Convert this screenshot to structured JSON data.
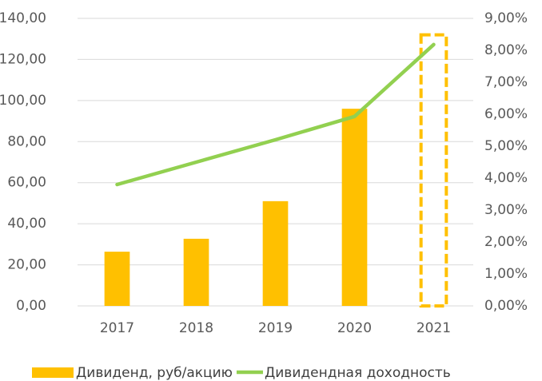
{
  "chart_data": {
    "type": "bar_line",
    "categories": [
      "2017",
      "2018",
      "2019",
      "2020",
      "2021"
    ],
    "series": [
      {
        "name": "Дивиденд, руб/акцию",
        "type": "bar",
        "color": "#ffc000",
        "values": [
          26.4,
          32.7,
          51,
          96,
          132
        ],
        "dashed": [
          false,
          false,
          false,
          false,
          true
        ]
      },
      {
        "name": "Дивидендная доходность",
        "type": "line",
        "axis": "y2",
        "color": "#92d050",
        "values": [
          3.8,
          4.5,
          5.2,
          5.93,
          8.18
        ]
      }
    ],
    "ylim": [
      0,
      140
    ],
    "yticks": [
      {
        "value": 0,
        "label": "0,00"
      },
      {
        "value": 20,
        "label": "20,00"
      },
      {
        "value": 40,
        "label": "40,00"
      },
      {
        "value": 60,
        "label": "60,00"
      },
      {
        "value": 80,
        "label": "80,00"
      },
      {
        "value": 100,
        "label": "100,00"
      },
      {
        "value": 120,
        "label": "120,00"
      },
      {
        "value": 140,
        "label": "140,00"
      }
    ],
    "y2lim": [
      0,
      9
    ],
    "y2ticks": [
      {
        "value": 0,
        "label": "0,00%"
      },
      {
        "value": 1,
        "label": "1,00%"
      },
      {
        "value": 2,
        "label": "2,00%"
      },
      {
        "value": 3,
        "label": "3,00%"
      },
      {
        "value": 4,
        "label": "4,00%"
      },
      {
        "value": 5,
        "label": "5,00%"
      },
      {
        "value": 6,
        "label": "6,00%"
      },
      {
        "value": 7,
        "label": "7,00%"
      },
      {
        "value": 8,
        "label": "8,00%"
      },
      {
        "value": 9,
        "label": "9,00%"
      }
    ],
    "grid": true,
    "legend": "bottom"
  }
}
